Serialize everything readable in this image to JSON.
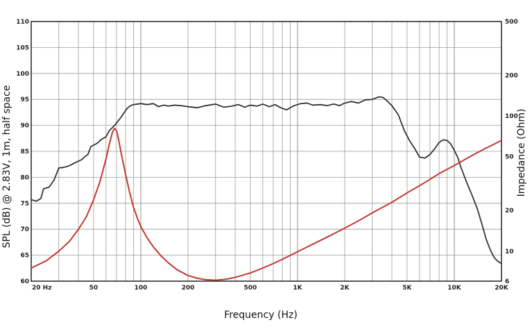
{
  "chart_data": {
    "type": "line",
    "title": "",
    "xlabel": "Frequency (Hz)",
    "ylabel": "SPL (dB) @ 2.83V, 1m, half space",
    "ylabel_right": "Impedance (Ohm)",
    "x_scale": "log",
    "xlim": [
      20,
      20000
    ],
    "ylim": [
      60,
      110
    ],
    "ylim_right": [
      6,
      500
    ],
    "y_right_scale": "log",
    "grid": true,
    "x_tick_labels": [
      {
        "value": 20,
        "label": "20  Hz"
      },
      {
        "value": 50,
        "label": "50"
      },
      {
        "value": 100,
        "label": "100"
      },
      {
        "value": 200,
        "label": "200"
      },
      {
        "value": 500,
        "label": "500"
      },
      {
        "value": 1000,
        "label": "1K"
      },
      {
        "value": 2000,
        "label": "2K"
      },
      {
        "value": 5000,
        "label": "5K"
      },
      {
        "value": 10000,
        "label": "10K"
      },
      {
        "value": 20000,
        "label": "20K"
      }
    ],
    "y_ticks": [
      60,
      65,
      70,
      75,
      80,
      85,
      90,
      95,
      100,
      105,
      110
    ],
    "y_right_ticks": [
      {
        "value": 6,
        "label": "6"
      },
      {
        "value": 10,
        "label": "10"
      },
      {
        "value": 20,
        "label": "20"
      },
      {
        "value": 50,
        "label": "50"
      },
      {
        "value": 100,
        "label": "100"
      },
      {
        "value": 200,
        "label": "200"
      },
      {
        "value": 500,
        "label": "500"
      }
    ],
    "series": [
      {
        "axis": "left",
        "color": "#333333",
        "x": [
          20,
          21.5,
          23,
          24,
          26,
          28,
          30,
          32,
          34,
          36,
          38,
          40,
          42,
          44,
          46,
          48,
          50,
          53,
          56,
          60,
          63,
          66,
          69,
          72,
          75,
          78,
          82,
          86,
          90,
          95,
          100,
          110,
          120,
          130,
          140,
          150,
          165,
          180,
          200,
          230,
          260,
          300,
          340,
          380,
          420,
          460,
          500,
          550,
          600,
          660,
          720,
          780,
          850,
          950,
          1050,
          1150,
          1250,
          1400,
          1550,
          1700,
          1850,
          2000,
          2200,
          2450,
          2700,
          3000,
          3300,
          3500,
          3700,
          4000,
          4400,
          4800,
          5200,
          5600,
          6000,
          6500,
          7000,
          7500,
          8000,
          8500,
          9000,
          9500,
          10000,
          10500,
          11000,
          12000,
          13000,
          14000,
          15000,
          16000,
          17000,
          18000,
          19000,
          20000
        ],
        "y": [
          75.7,
          75.4,
          75.9,
          77.8,
          78.1,
          79.5,
          81.8,
          81.9,
          82.1,
          82.4,
          82.8,
          83.1,
          83.4,
          84.0,
          84.4,
          85.9,
          86.2,
          86.6,
          87.3,
          87.8,
          89.0,
          89.6,
          90.2,
          90.9,
          91.6,
          92.4,
          93.3,
          93.8,
          94.0,
          94.1,
          94.2,
          94.0,
          94.2,
          93.6,
          93.9,
          93.7,
          93.9,
          93.8,
          93.6,
          93.4,
          93.8,
          94.1,
          93.5,
          93.7,
          94.0,
          93.5,
          93.9,
          93.7,
          94.1,
          93.6,
          94.0,
          93.4,
          93.0,
          93.8,
          94.2,
          94.3,
          93.9,
          94.0,
          93.8,
          94.1,
          93.8,
          94.3,
          94.6,
          94.3,
          94.9,
          95.0,
          95.5,
          95.4,
          94.8,
          93.8,
          92.0,
          89.0,
          87.0,
          85.5,
          83.9,
          83.7,
          84.4,
          85.5,
          86.7,
          87.2,
          87.1,
          86.4,
          85.2,
          83.9,
          82.0,
          79.0,
          76.5,
          74.0,
          71.0,
          68.0,
          66.0,
          64.5,
          63.8,
          63.4
        ]
      },
      {
        "axis": "right",
        "color": "#c0392b",
        "x": [
          20,
          25,
          30,
          35,
          40,
          45,
          50,
          55,
          60,
          63,
          66,
          68,
          70,
          72,
          75,
          80,
          85,
          90,
          95,
          100,
          110,
          120,
          135,
          150,
          170,
          200,
          230,
          260,
          300,
          350,
          400,
          500,
          600,
          700,
          800,
          1000,
          1200,
          1500,
          2000,
          2500,
          3000,
          4000,
          5000,
          6000,
          7000,
          8000,
          10000,
          12000,
          14000,
          16000,
          18000,
          20000
        ],
        "y": [
          7.5,
          8.5,
          10.0,
          11.8,
          14.5,
          18.0,
          24.0,
          33.0,
          48.0,
          62.0,
          76.0,
          81.0,
          78.0,
          68.0,
          53.0,
          37.0,
          27.0,
          21.0,
          17.6,
          15.2,
          12.5,
          10.8,
          9.2,
          8.2,
          7.3,
          6.6,
          6.3,
          6.15,
          6.1,
          6.2,
          6.4,
          6.9,
          7.5,
          8.1,
          8.7,
          9.9,
          11.0,
          12.5,
          14.8,
          17.0,
          19.2,
          23.0,
          27.0,
          30.5,
          34.0,
          37.5,
          43.0,
          48.5,
          53.5,
          58.0,
          62.0,
          66.0
        ]
      }
    ]
  }
}
